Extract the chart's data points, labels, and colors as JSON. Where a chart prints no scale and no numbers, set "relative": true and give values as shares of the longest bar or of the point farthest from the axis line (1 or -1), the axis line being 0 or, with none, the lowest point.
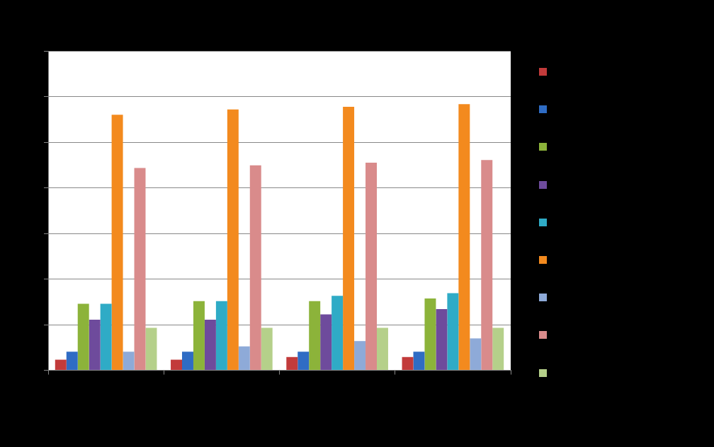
{
  "chart_data": {
    "type": "bar",
    "relative": true,
    "categories": [
      null,
      null,
      null,
      null
    ],
    "grid": "y",
    "series": [
      {
        "color": "#c23b3b",
        "values": [
          0.04,
          0.04,
          0.05,
          0.05
        ]
      },
      {
        "color": "#2f6cc4",
        "values": [
          0.07,
          0.07,
          0.07,
          0.07
        ]
      },
      {
        "color": "#8cb33a",
        "values": [
          0.25,
          0.26,
          0.26,
          0.27
        ]
      },
      {
        "color": "#6e4b9c",
        "values": [
          0.19,
          0.19,
          0.21,
          0.23
        ]
      },
      {
        "color": "#2fabc6",
        "values": [
          0.25,
          0.26,
          0.28,
          0.29
        ]
      },
      {
        "color": "#f38a1e",
        "values": [
          0.96,
          0.98,
          0.99,
          1
        ]
      },
      {
        "color": "#8eaad8",
        "values": [
          0.07,
          0.09,
          0.11,
          0.12
        ]
      },
      {
        "color": "#d98b8b",
        "values": [
          0.76,
          0.77,
          0.78,
          0.79
        ]
      },
      {
        "color": "#b5d08a",
        "values": [
          0.16,
          0.16,
          0.16,
          0.16
        ]
      }
    ]
  }
}
